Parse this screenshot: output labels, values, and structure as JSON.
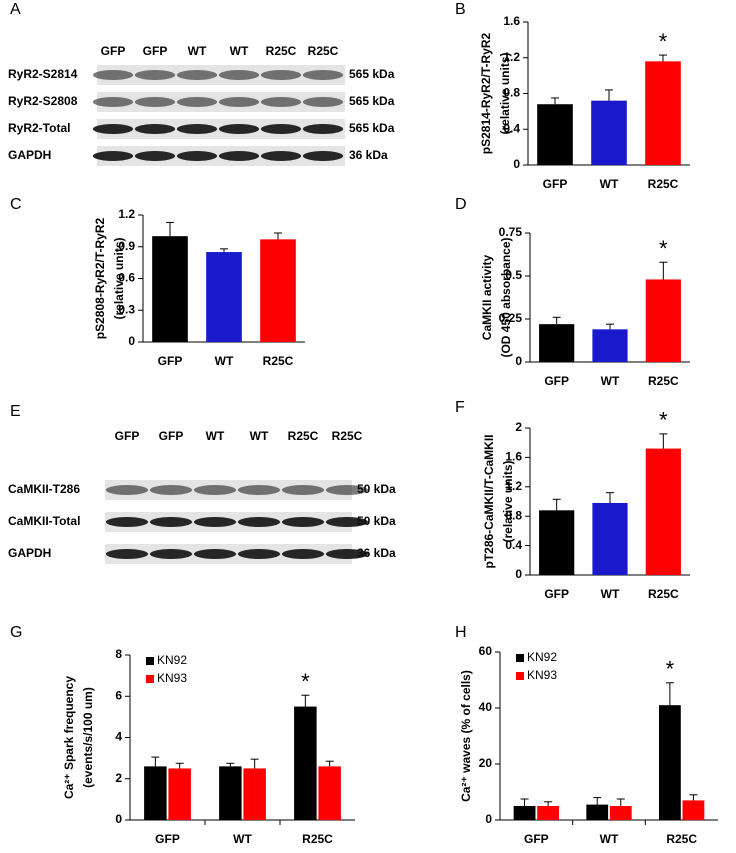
{
  "chart_data": [
    {
      "panel": "B",
      "type": "bar",
      "ylabel": [
        "pS2814-RyR2/T-RyR2",
        "(relative units)"
      ],
      "categories": [
        "GFP",
        "WT",
        "R25C"
      ],
      "series": [
        {
          "colors": [
            "#000000",
            "#1a1acc",
            "#ff0000"
          ],
          "values": [
            0.68,
            0.72,
            1.16
          ],
          "errors": [
            0.07,
            0.12,
            0.07
          ]
        }
      ],
      "ylim": [
        0,
        1.6
      ],
      "yticks": [
        0,
        0.4,
        0.8,
        1.2,
        1.6
      ],
      "annotation": "*"
    },
    {
      "panel": "C",
      "type": "bar",
      "ylabel": [
        "pS2808-RyR2/T-RyR2",
        "(relative units)"
      ],
      "categories": [
        "GFP",
        "WT",
        "R25C"
      ],
      "series": [
        {
          "colors": [
            "#000000",
            "#1a1acc",
            "#ff0000"
          ],
          "values": [
            1.0,
            0.85,
            0.97
          ],
          "errors": [
            0.13,
            0.03,
            0.06
          ]
        }
      ],
      "ylim": [
        0,
        1.2
      ],
      "yticks": [
        0,
        0.3,
        0.6,
        0.9,
        1.2
      ]
    },
    {
      "panel": "D",
      "type": "bar",
      "ylabel": [
        "CaMKII activity",
        "(OD 450 absorbance)"
      ],
      "categories": [
        "GFP",
        "WT",
        "R25C"
      ],
      "series": [
        {
          "colors": [
            "#000000",
            "#1a1acc",
            "#ff0000"
          ],
          "values": [
            0.22,
            0.19,
            0.48
          ],
          "errors": [
            0.04,
            0.03,
            0.1
          ]
        }
      ],
      "ylim": [
        0,
        0.75
      ],
      "yticks": [
        0,
        0.25,
        0.5,
        0.75
      ],
      "annotation": "*"
    },
    {
      "panel": "F",
      "type": "bar",
      "ylabel": [
        "pT286-CaMKII/T-CaMKII",
        "(relative units)"
      ],
      "categories": [
        "GFP",
        "WT",
        "R25C"
      ],
      "series": [
        {
          "colors": [
            "#000000",
            "#1a1acc",
            "#ff0000"
          ],
          "values": [
            0.88,
            0.98,
            1.72
          ],
          "errors": [
            0.15,
            0.14,
            0.2
          ]
        }
      ],
      "ylim": [
        0,
        2
      ],
      "yticks": [
        0,
        0.4,
        0.8,
        1.2,
        1.6,
        2
      ],
      "annotation": "*"
    },
    {
      "panel": "G",
      "type": "grouped-bar",
      "ylabel": [
        "Ca²⁺ Spark frequency",
        "(events/s/100 um)"
      ],
      "categories": [
        "GFP",
        "WT",
        "R25C"
      ],
      "series": [
        {
          "name": "KN92",
          "color": "#000000",
          "values": [
            2.6,
            2.6,
            5.5
          ],
          "errors": [
            0.45,
            0.15,
            0.55
          ]
        },
        {
          "name": "KN93",
          "color": "#ff0000",
          "values": [
            2.5,
            2.5,
            2.6
          ],
          "errors": [
            0.25,
            0.45,
            0.25
          ]
        }
      ],
      "ylim": [
        0,
        8
      ],
      "yticks": [
        0,
        2,
        4,
        6,
        8
      ],
      "annotation": "*"
    },
    {
      "panel": "H",
      "type": "grouped-bar",
      "ylabel": [
        "Ca²⁺ waves (% of cells)"
      ],
      "categories": [
        "GFP",
        "WT",
        "R25C"
      ],
      "series": [
        {
          "name": "KN92",
          "color": "#000000",
          "values": [
            5,
            5.5,
            41
          ],
          "errors": [
            2.5,
            2.5,
            8
          ]
        },
        {
          "name": "KN93",
          "color": "#ff0000",
          "values": [
            5,
            5,
            7
          ],
          "errors": [
            1.5,
            2.5,
            2
          ]
        }
      ],
      "ylim": [
        0,
        60
      ],
      "yticks": [
        0,
        20,
        40,
        60
      ],
      "annotation": "*"
    }
  ],
  "blots": [
    {
      "panel": "A",
      "lanes": [
        "GFP",
        "GFP",
        "WT",
        "WT",
        "R25C",
        "R25C"
      ],
      "rows": [
        {
          "label": "RyR2-S2814",
          "size": "565 kDa"
        },
        {
          "label": "RyR2-S2808",
          "size": "565 kDa"
        },
        {
          "label": "RyR2-Total",
          "size": "565 kDa"
        },
        {
          "label": "GAPDH",
          "size": "36  kDa"
        }
      ]
    },
    {
      "panel": "E",
      "lanes": [
        "GFP",
        "GFP",
        "WT",
        "WT",
        "R25C",
        "R25C"
      ],
      "rows": [
        {
          "label": "CaMKII-T286",
          "size": "50 kDa"
        },
        {
          "label": "CaMKII-Total",
          "size": "50 kDa"
        },
        {
          "label": "GAPDH",
          "size": "36  kDa"
        }
      ]
    }
  ]
}
